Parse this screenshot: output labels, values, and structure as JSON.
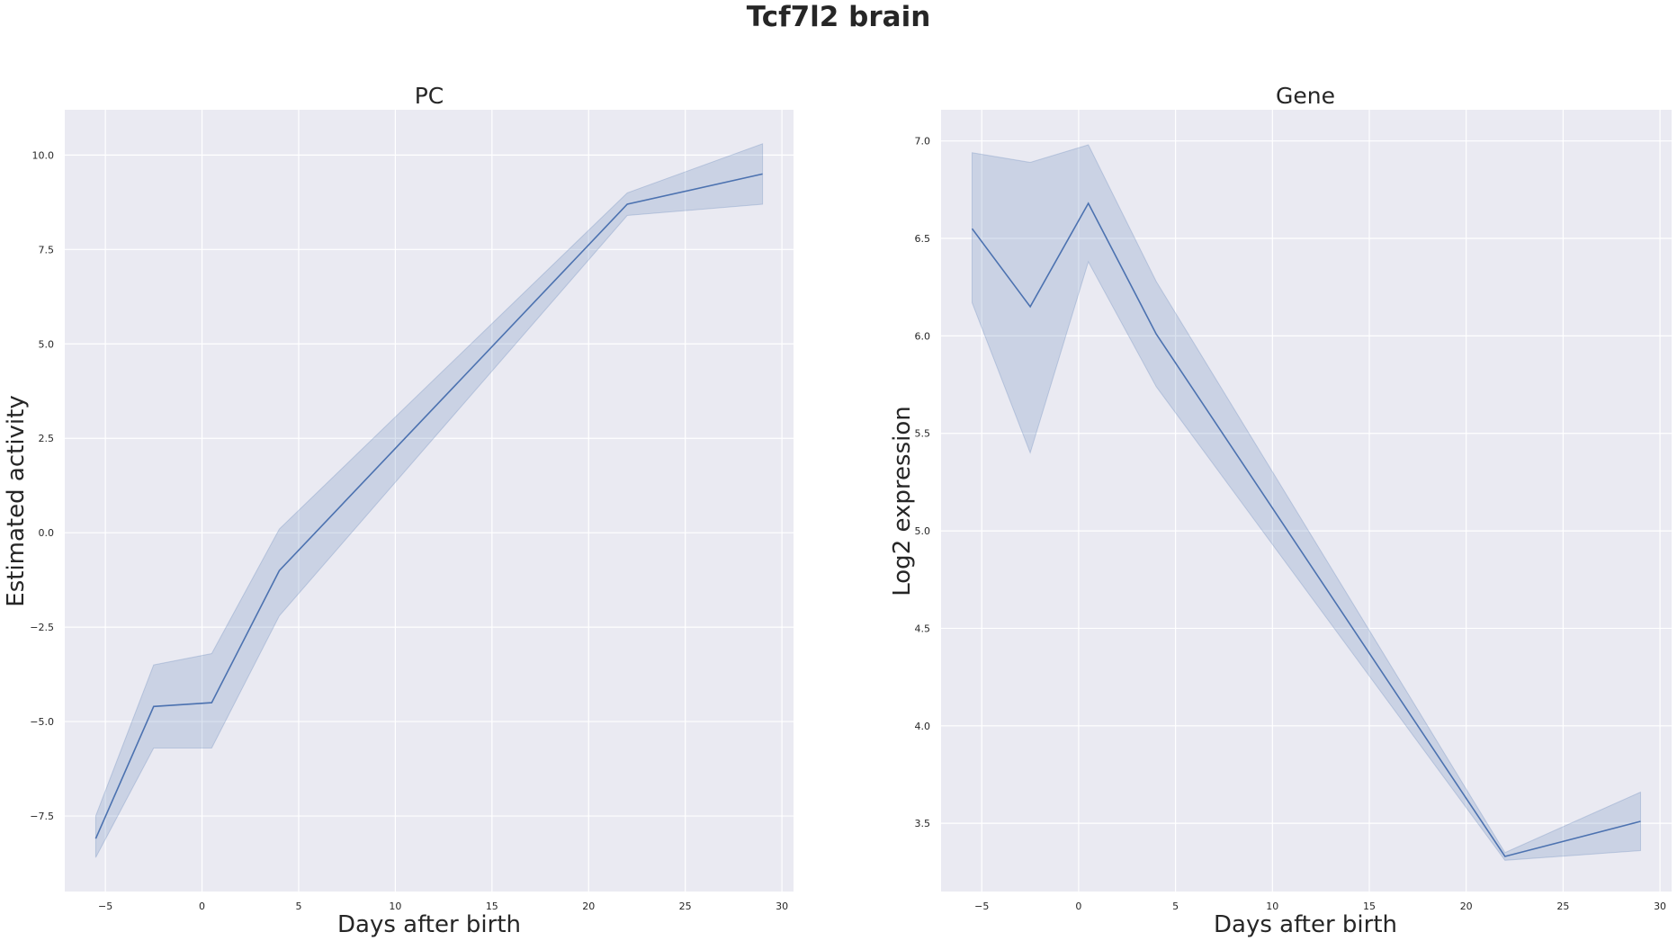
{
  "figure_title": "Tcf7l2 brain",
  "colors": {
    "line": "#4c72b0",
    "band": "#4c72b0",
    "panel_background": "#eaeaf2",
    "grid": "#ffffff"
  },
  "chart_data": [
    {
      "type": "line",
      "title": "PC",
      "xlabel": "Days after birth",
      "ylabel": "Estimated activity",
      "xlim": [
        -7.1,
        30.6
      ],
      "ylim": [
        -9.5,
        11.2
      ],
      "xticks": [
        -5,
        0,
        5,
        10,
        15,
        20,
        25,
        30
      ],
      "xtick_labels": [
        "−5",
        "0",
        "5",
        "10",
        "15",
        "20",
        "25",
        "30"
      ],
      "yticks": [
        -7.5,
        -5.0,
        -2.5,
        0.0,
        2.5,
        5.0,
        7.5,
        10.0
      ],
      "ytick_labels": [
        "−7.5",
        "−5.0",
        "−2.5",
        "0.0",
        "2.5",
        "5.0",
        "7.5",
        "10.0"
      ],
      "grid": true,
      "series": [
        {
          "x": [
            -5.5,
            -2.5,
            0.5,
            4,
            22,
            29
          ],
          "y": [
            -8.1,
            -4.6,
            -4.5,
            -1.0,
            8.7,
            9.5
          ],
          "ci_low": [
            -8.6,
            -5.7,
            -5.7,
            -2.2,
            8.4,
            8.7
          ],
          "ci_high": [
            -7.5,
            -3.5,
            -3.2,
            0.1,
            9.0,
            10.3
          ]
        }
      ]
    },
    {
      "type": "line",
      "title": "Gene",
      "xlabel": "Days after birth",
      "ylabel": "Log2 expression",
      "xlim": [
        -7.1,
        30.6
      ],
      "ylim": [
        3.15,
        7.16
      ],
      "xticks": [
        -5,
        0,
        5,
        10,
        15,
        20,
        25,
        30
      ],
      "xtick_labels": [
        "−5",
        "0",
        "5",
        "10",
        "15",
        "20",
        "25",
        "30"
      ],
      "yticks": [
        3.5,
        4.0,
        4.5,
        5.0,
        5.5,
        6.0,
        6.5,
        7.0
      ],
      "ytick_labels": [
        "3.5",
        "4.0",
        "4.5",
        "5.0",
        "5.5",
        "6.0",
        "6.5",
        "7.0"
      ],
      "grid": true,
      "series": [
        {
          "x": [
            -5.5,
            -2.5,
            0.5,
            4,
            22,
            29
          ],
          "y": [
            6.55,
            6.15,
            6.68,
            6.01,
            3.33,
            3.51
          ],
          "ci_low": [
            6.17,
            5.4,
            6.38,
            5.74,
            3.31,
            3.36
          ],
          "ci_high": [
            6.94,
            6.89,
            6.98,
            6.28,
            3.35,
            3.66
          ]
        }
      ]
    }
  ]
}
